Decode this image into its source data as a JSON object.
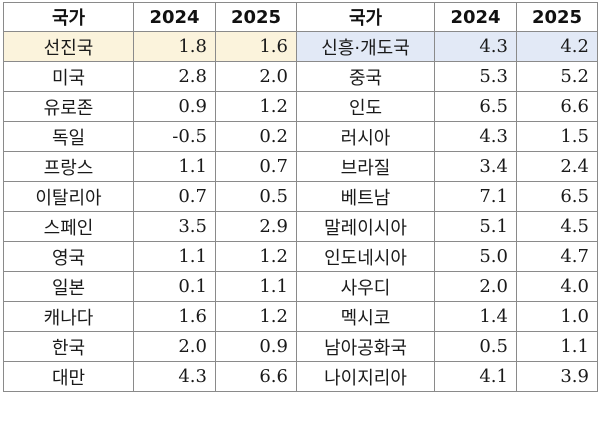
{
  "table": {
    "headers": [
      "국가",
      "2024",
      "2025",
      "국가",
      "2024",
      "2025"
    ],
    "highlight_colors": {
      "left_first_row": "#FBF3DC",
      "right_first_row": "#E2E9F6"
    },
    "rows": [
      {
        "left": {
          "country": "선진국",
          "y2024": "1.8",
          "y2025": "1.6"
        },
        "right": {
          "country": "신흥·개도국",
          "y2024": "4.3",
          "y2025": "4.2"
        }
      },
      {
        "left": {
          "country": "미국",
          "y2024": "2.8",
          "y2025": "2.0"
        },
        "right": {
          "country": "중국",
          "y2024": "5.3",
          "y2025": "5.2"
        }
      },
      {
        "left": {
          "country": "유로존",
          "y2024": "0.9",
          "y2025": "1.2"
        },
        "right": {
          "country": "인도",
          "y2024": "6.5",
          "y2025": "6.6"
        }
      },
      {
        "left": {
          "country": "독일",
          "y2024": "-0.5",
          "y2025": "0.2"
        },
        "right": {
          "country": "러시아",
          "y2024": "4.3",
          "y2025": "1.5"
        }
      },
      {
        "left": {
          "country": "프랑스",
          "y2024": "1.1",
          "y2025": "0.7"
        },
        "right": {
          "country": "브라질",
          "y2024": "3.4",
          "y2025": "2.4"
        }
      },
      {
        "left": {
          "country": "이탈리아",
          "y2024": "0.7",
          "y2025": "0.5"
        },
        "right": {
          "country": "베트남",
          "y2024": "7.1",
          "y2025": "6.5"
        }
      },
      {
        "left": {
          "country": "스페인",
          "y2024": "3.5",
          "y2025": "2.9"
        },
        "right": {
          "country": "말레이시아",
          "y2024": "5.1",
          "y2025": "4.5"
        }
      },
      {
        "left": {
          "country": "영국",
          "y2024": "1.1",
          "y2025": "1.2"
        },
        "right": {
          "country": "인도네시아",
          "y2024": "5.0",
          "y2025": "4.7"
        }
      },
      {
        "left": {
          "country": "일본",
          "y2024": "0.1",
          "y2025": "1.1"
        },
        "right": {
          "country": "사우디",
          "y2024": "2.0",
          "y2025": "4.0"
        }
      },
      {
        "left": {
          "country": "캐나다",
          "y2024": "1.6",
          "y2025": "1.2"
        },
        "right": {
          "country": "멕시코",
          "y2024": "1.4",
          "y2025": "1.0"
        }
      },
      {
        "left": {
          "country": "한국",
          "y2024": "2.0",
          "y2025": "0.9"
        },
        "right": {
          "country": "남아공화국",
          "y2024": "0.5",
          "y2025": "1.1"
        }
      },
      {
        "left": {
          "country": "대만",
          "y2024": "4.3",
          "y2025": "6.6"
        },
        "right": {
          "country": "나이지리아",
          "y2024": "4.1",
          "y2025": "3.9"
        }
      }
    ]
  }
}
